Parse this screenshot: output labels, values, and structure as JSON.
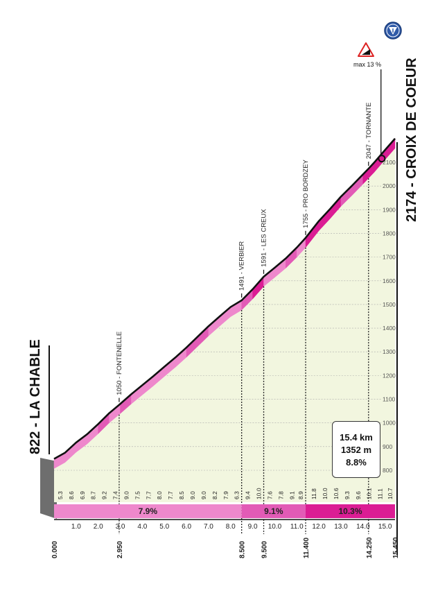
{
  "chart_data": {
    "type": "area",
    "start": {
      "name": "LA CHABLE",
      "elevation": 822
    },
    "finish": {
      "name": "CROIX DE COEUR",
      "elevation": 2174
    },
    "summary": {
      "distance": "15.4 km",
      "gain": "1352 m",
      "avg_gradient": "8.8%"
    },
    "x_unit": "km",
    "xlim": [
      0,
      15.45
    ],
    "ylim": [
      700,
      2200
    ],
    "elevation_ticks": [
      800,
      900,
      1000,
      1100,
      1200,
      1300,
      1400,
      1500,
      1600,
      1700,
      1800,
      1900,
      2000,
      2100
    ],
    "km_ticks": [
      "1.0",
      "2.0",
      "3.0",
      "4.0",
      "5.0",
      "6.0",
      "7.0",
      "8.0",
      "9.0",
      "10.0",
      "11.0",
      "12.0",
      "13.0",
      "14.0",
      "15.0"
    ],
    "key_points": [
      {
        "x": 0,
        "label": "0.000"
      },
      {
        "x": 2.95,
        "label": "2.950"
      },
      {
        "x": 8.5,
        "label": "8.500"
      },
      {
        "x": 9.5,
        "label": "9.500"
      },
      {
        "x": 11.4,
        "label": "11.400"
      },
      {
        "x": 14.25,
        "label": "14.250"
      },
      {
        "x": 15.45,
        "label": "15.450"
      }
    ],
    "gradients": [
      {
        "x": 0.5,
        "label": "5.3"
      },
      {
        "x": 1.0,
        "label": "8.6"
      },
      {
        "x": 1.5,
        "label": "6.9"
      },
      {
        "x": 2.0,
        "label": "8.7"
      },
      {
        "x": 2.5,
        "label": "9.2"
      },
      {
        "x": 3.0,
        "label": "7.4"
      },
      {
        "x": 3.5,
        "label": "9.0"
      },
      {
        "x": 4.0,
        "label": "7.5"
      },
      {
        "x": 4.5,
        "label": "7.7"
      },
      {
        "x": 5.0,
        "label": "8.0"
      },
      {
        "x": 5.5,
        "label": "7.7"
      },
      {
        "x": 6.0,
        "label": "8.5"
      },
      {
        "x": 6.5,
        "label": "9.0"
      },
      {
        "x": 7.0,
        "label": "9.0"
      },
      {
        "x": 7.5,
        "label": "8.2"
      },
      {
        "x": 8.0,
        "label": "7.9"
      },
      {
        "x": 8.5,
        "label": "6.3"
      },
      {
        "x": 9.0,
        "label": "9.4"
      },
      {
        "x": 9.5,
        "label": "10.0"
      },
      {
        "x": 10.0,
        "label": "7.6"
      },
      {
        "x": 10.5,
        "label": "7.8"
      },
      {
        "x": 11.0,
        "label": "9.1"
      },
      {
        "x": 11.4,
        "label": "8.9"
      },
      {
        "x": 12.0,
        "label": "11.8"
      },
      {
        "x": 12.5,
        "label": "10.0"
      },
      {
        "x": 13.0,
        "label": "10.6"
      },
      {
        "x": 13.5,
        "label": "9.3"
      },
      {
        "x": 14.0,
        "label": "9.6"
      },
      {
        "x": 14.5,
        "label": "10.1"
      },
      {
        "x": 15.0,
        "label": "11.1"
      },
      {
        "x": 15.45,
        "label": "10.7"
      }
    ],
    "profile": [
      {
        "x": 0,
        "y": 822
      },
      {
        "x": 0.5,
        "y": 848
      },
      {
        "x": 1.0,
        "y": 891
      },
      {
        "x": 1.5,
        "y": 926
      },
      {
        "x": 2.0,
        "y": 969
      },
      {
        "x": 2.5,
        "y": 1015
      },
      {
        "x": 2.95,
        "y": 1050
      },
      {
        "x": 3.5,
        "y": 1095
      },
      {
        "x": 4.0,
        "y": 1133
      },
      {
        "x": 4.5,
        "y": 1171
      },
      {
        "x": 5.0,
        "y": 1211
      },
      {
        "x": 5.5,
        "y": 1250
      },
      {
        "x": 6.0,
        "y": 1292
      },
      {
        "x": 6.5,
        "y": 1337
      },
      {
        "x": 7.0,
        "y": 1382
      },
      {
        "x": 7.5,
        "y": 1423
      },
      {
        "x": 8.0,
        "y": 1463
      },
      {
        "x": 8.5,
        "y": 1491
      },
      {
        "x": 9.0,
        "y": 1538
      },
      {
        "x": 9.5,
        "y": 1591
      },
      {
        "x": 10.0,
        "y": 1629
      },
      {
        "x": 10.5,
        "y": 1668
      },
      {
        "x": 11.0,
        "y": 1714
      },
      {
        "x": 11.4,
        "y": 1755
      },
      {
        "x": 12.0,
        "y": 1826
      },
      {
        "x": 12.5,
        "y": 1876
      },
      {
        "x": 13.0,
        "y": 1929
      },
      {
        "x": 13.5,
        "y": 1975
      },
      {
        "x": 14.0,
        "y": 2023
      },
      {
        "x": 14.25,
        "y": 2047
      },
      {
        "x": 14.5,
        "y": 2072
      },
      {
        "x": 15.0,
        "y": 2126
      },
      {
        "x": 15.45,
        "y": 2174
      }
    ],
    "waypoints": [
      {
        "x": 2.95,
        "label": "1050 - FONTENELLE"
      },
      {
        "x": 8.5,
        "label": "1491 - VERBIER"
      },
      {
        "x": 9.5,
        "label": "1591 - LES CREUX"
      },
      {
        "x": 11.4,
        "label": "1755 - PRO BORDZEY"
      },
      {
        "x": 14.25,
        "label": "2047 - TORNANTE"
      }
    ],
    "max_gradient": {
      "x": 14.5,
      "label": "max 13 %"
    },
    "segments": [
      {
        "from": 0,
        "to": 8.5,
        "label": "7.9%",
        "color": "#ee88cc"
      },
      {
        "from": 8.5,
        "to": 11.4,
        "label": "9.1%",
        "color": "#e25bb6"
      },
      {
        "from": 11.4,
        "to": 15.45,
        "label": "10.3%",
        "color": "#db1d94"
      }
    ],
    "colors": {
      "climb_light": "#ee88cc",
      "climb_mid": "#e25bb6",
      "climb_dark": "#db1d94",
      "fill": "#f2f6df",
      "finish_icon": "#2f5aa8"
    }
  }
}
